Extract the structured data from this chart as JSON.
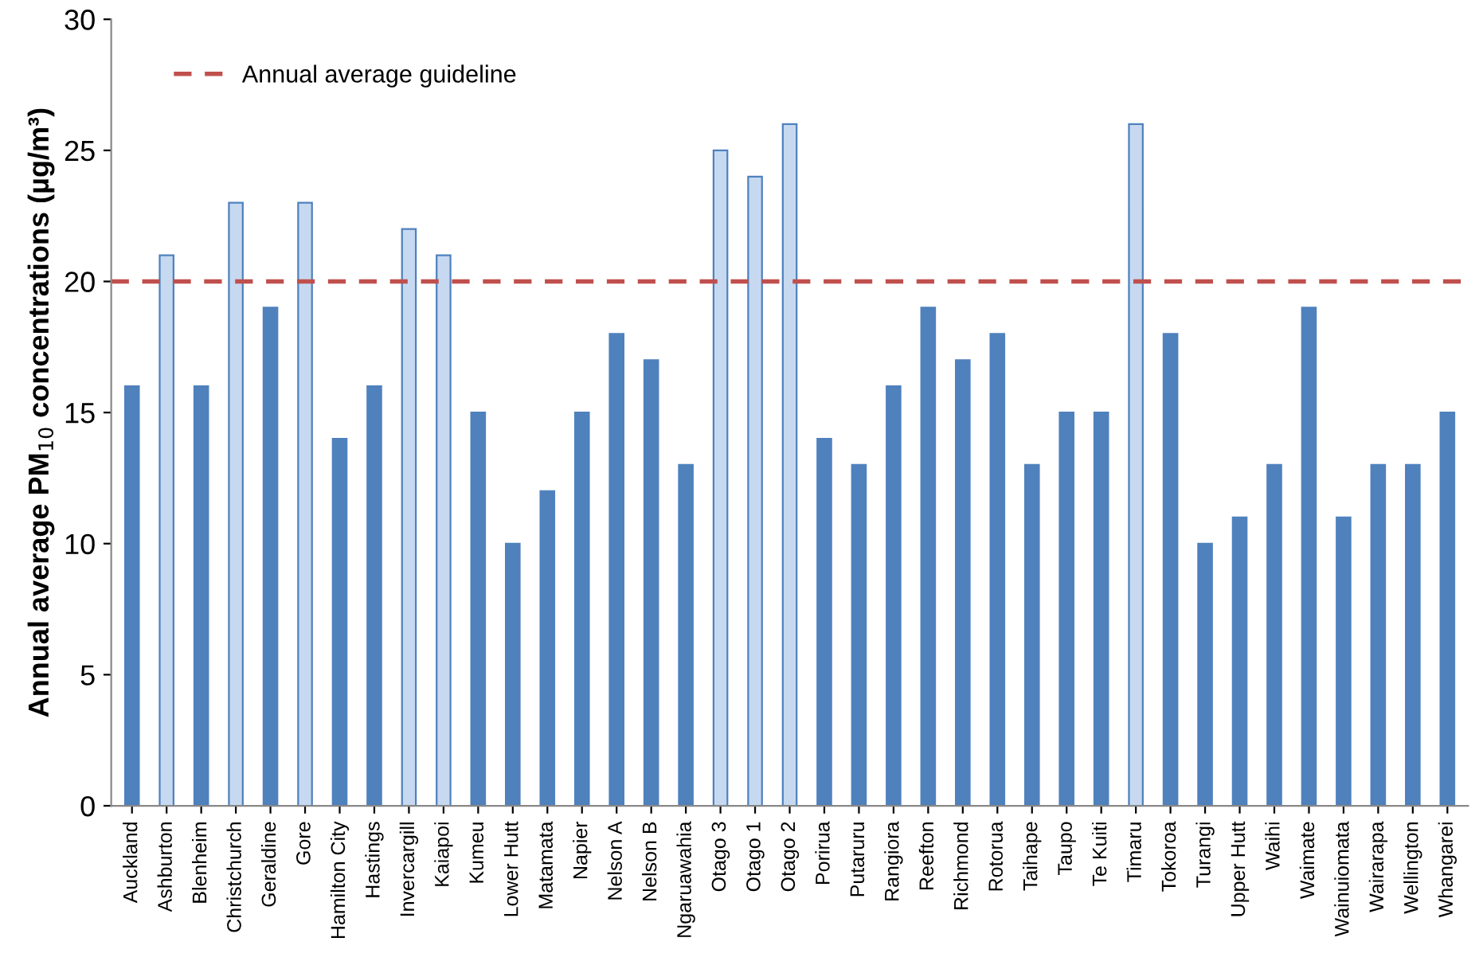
{
  "chart_data": {
    "type": "bar",
    "ylabel": "Annual average PM$_{10}$ concentrations (µg/m³)",
    "categories": [
      "Auckland",
      "Ashburton",
      "Blenheim",
      "Christchurch",
      "Geraldine",
      "Gore",
      "Hamilton City",
      "Hastings",
      "Invercargill",
      "Kaiapoi",
      "Kumeu",
      "Lower Hutt",
      "Matamata",
      "Napier",
      "Nelson A",
      "Nelson B",
      "Ngaruawahia",
      "Otago 3",
      "Otago 1",
      "Otago 2",
      "Porirua",
      "Putaruru",
      "Rangiora",
      "Reefton",
      "Richmond",
      "Rotorua",
      "Taihape",
      "Taupo",
      "Te Kuiti",
      "Timaru",
      "Tokoroa",
      "Turangi",
      "Upper Hutt",
      "Waihi",
      "Waimate",
      "Wainuiomata",
      "Wairarapa",
      "Wellington",
      "Whangarei"
    ],
    "values": [
      16,
      21,
      16,
      23,
      19,
      23,
      14,
      16,
      22,
      21,
      15,
      10,
      12,
      15,
      18,
      17,
      13,
      25,
      24,
      26,
      14,
      13,
      16,
      19,
      17,
      18,
      13,
      15,
      15,
      26,
      18,
      10,
      11,
      13,
      19,
      11,
      13,
      13,
      15
    ],
    "colors": [
      "#4f81bd",
      "#c6d9f1",
      "#4f81bd",
      "#c6d9f1",
      "#4f81bd",
      "#c6d9f1",
      "#4f81bd",
      "#4f81bd",
      "#c6d9f1",
      "#c6d9f1",
      "#4f81bd",
      "#4f81bd",
      "#4f81bd",
      "#4f81bd",
      "#4f81bd",
      "#4f81bd",
      "#4f81bd",
      "#c6d9f1",
      "#c6d9f1",
      "#c6d9f1",
      "#4f81bd",
      "#4f81bd",
      "#4f81bd",
      "#4f81bd",
      "#4f81bd",
      "#4f81bd",
      "#4f81bd",
      "#4f81bd",
      "#4f81bd",
      "#c6d9f1",
      "#4f81bd",
      "#4f81bd",
      "#4f81bd",
      "#4f81bd",
      "#4f81bd",
      "#4f81bd",
      "#4f81bd",
      "#4f81bd",
      "#4f81bd"
    ],
    "ylim": [
      0,
      30
    ],
    "yticks": [
      0,
      5,
      10,
      15,
      20,
      25,
      30
    ],
    "ref_lines": [
      {
        "axis": "y",
        "value": 20,
        "label": "Annual average guideline",
        "color": "#c0504d",
        "line_style": "dashed"
      }
    ],
    "legend": "top left",
    "grid": false
  }
}
